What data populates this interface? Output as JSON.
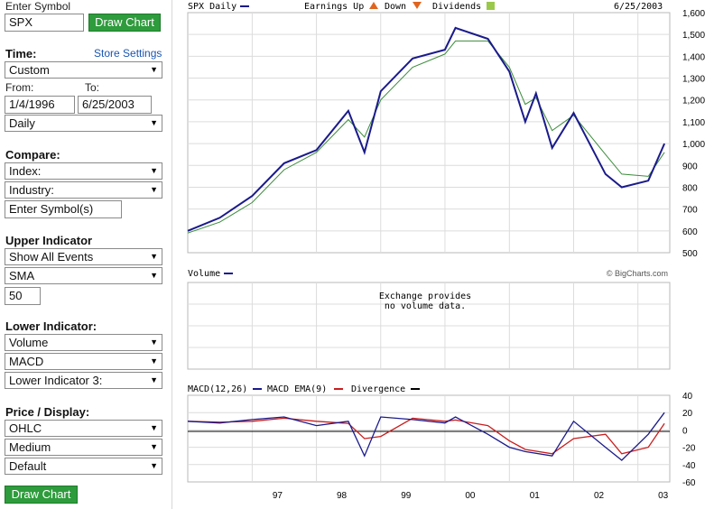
{
  "sidebar": {
    "enter_symbol_label": "Enter Symbol",
    "symbol_value": "SPX",
    "draw_chart_label": "Draw Chart",
    "time_label": "Time:",
    "store_settings": "Store Settings",
    "time_select": "Custom",
    "from_label": "From:",
    "to_label": "To:",
    "from_value": "1/4/1996",
    "to_value": "6/25/2003",
    "frequency": "Daily",
    "compare_label": "Compare:",
    "index_select": "Index:",
    "industry_select": "Industry:",
    "compare_symbols_placeholder": "Enter Symbol(s)",
    "upper_label": "Upper Indicator",
    "events_select": "Show All Events",
    "sma_select": "SMA",
    "sma_period": "50",
    "lower_label": "Lower Indicator:",
    "lower1": "Volume",
    "lower2": "MACD",
    "lower3": "Lower Indicator 3:",
    "price_display_label": "Price / Display:",
    "style_select": "OHLC",
    "size_select": "Medium",
    "scheme_select": "Default",
    "draw_chart_bottom": "Draw Chart"
  },
  "colors": {
    "price": "#1a1a8c",
    "sma": "#3c8c3c",
    "macd": "#1a1a8c",
    "ema": "#c81e1e",
    "divergence": "#000000"
  },
  "chart_data": [
    {
      "type": "line",
      "title": "SPX Daily",
      "legend": [
        "Earnings Up",
        "Down",
        "Dividends"
      ],
      "date_label": "6/25/2003",
      "x": [
        "1996-01",
        "1996-07",
        "1997-01",
        "1997-07",
        "1998-01",
        "1998-07",
        "1998-10",
        "1999-01",
        "1999-07",
        "2000-01",
        "2000-03",
        "2000-09",
        "2001-01",
        "2001-04",
        "2001-06",
        "2001-09",
        "2002-01",
        "2002-07",
        "2002-10",
        "2003-03",
        "2003-06"
      ],
      "series": [
        {
          "name": "SPX Daily",
          "values": [
            600,
            660,
            760,
            910,
            970,
            1150,
            960,
            1240,
            1390,
            1430,
            1530,
            1480,
            1330,
            1100,
            1230,
            980,
            1140,
            860,
            800,
            830,
            1000
          ]
        },
        {
          "name": "SMA",
          "values": [
            590,
            640,
            730,
            880,
            960,
            1110,
            1030,
            1200,
            1350,
            1410,
            1470,
            1470,
            1350,
            1180,
            1210,
            1060,
            1130,
            950,
            860,
            850,
            960
          ]
        }
      ],
      "ylim": [
        500,
        1600
      ],
      "yticks": [
        "1,600",
        "1,500",
        "1,400",
        "1,300",
        "1,200",
        "1,100",
        "1,000",
        "900",
        "800",
        "700",
        "600",
        "500"
      ]
    },
    {
      "type": "bar",
      "title": "Volume",
      "message_line1": "Exchange provides",
      "message_line2": "no volume data.",
      "watermark": "© BigCharts.com"
    },
    {
      "type": "line",
      "legend_macd": "MACD(12,26)",
      "legend_ema": "MACD EMA(9)",
      "legend_div": "Divergence",
      "x": [
        "1996-01",
        "1996-07",
        "1997-01",
        "1997-07",
        "1998-01",
        "1998-07",
        "1998-10",
        "1999-01",
        "1999-07",
        "2000-01",
        "2000-03",
        "2000-09",
        "2001-01",
        "2001-04",
        "2001-09",
        "2002-01",
        "2002-07",
        "2002-10",
        "2003-03",
        "2003-06"
      ],
      "series": [
        {
          "name": "MACD(12,26)",
          "values": [
            10,
            8,
            12,
            15,
            5,
            10,
            -30,
            15,
            12,
            8,
            15,
            -5,
            -20,
            -25,
            -30,
            10,
            -20,
            -35,
            -5,
            20
          ]
        }
      ],
      "ylim": [
        -60,
        40
      ],
      "yticks": [
        "40",
        "20",
        "0",
        "-20",
        "-40",
        "-60"
      ],
      "xticks": [
        "97",
        "98",
        "99",
        "00",
        "01",
        "02",
        "03"
      ]
    }
  ]
}
